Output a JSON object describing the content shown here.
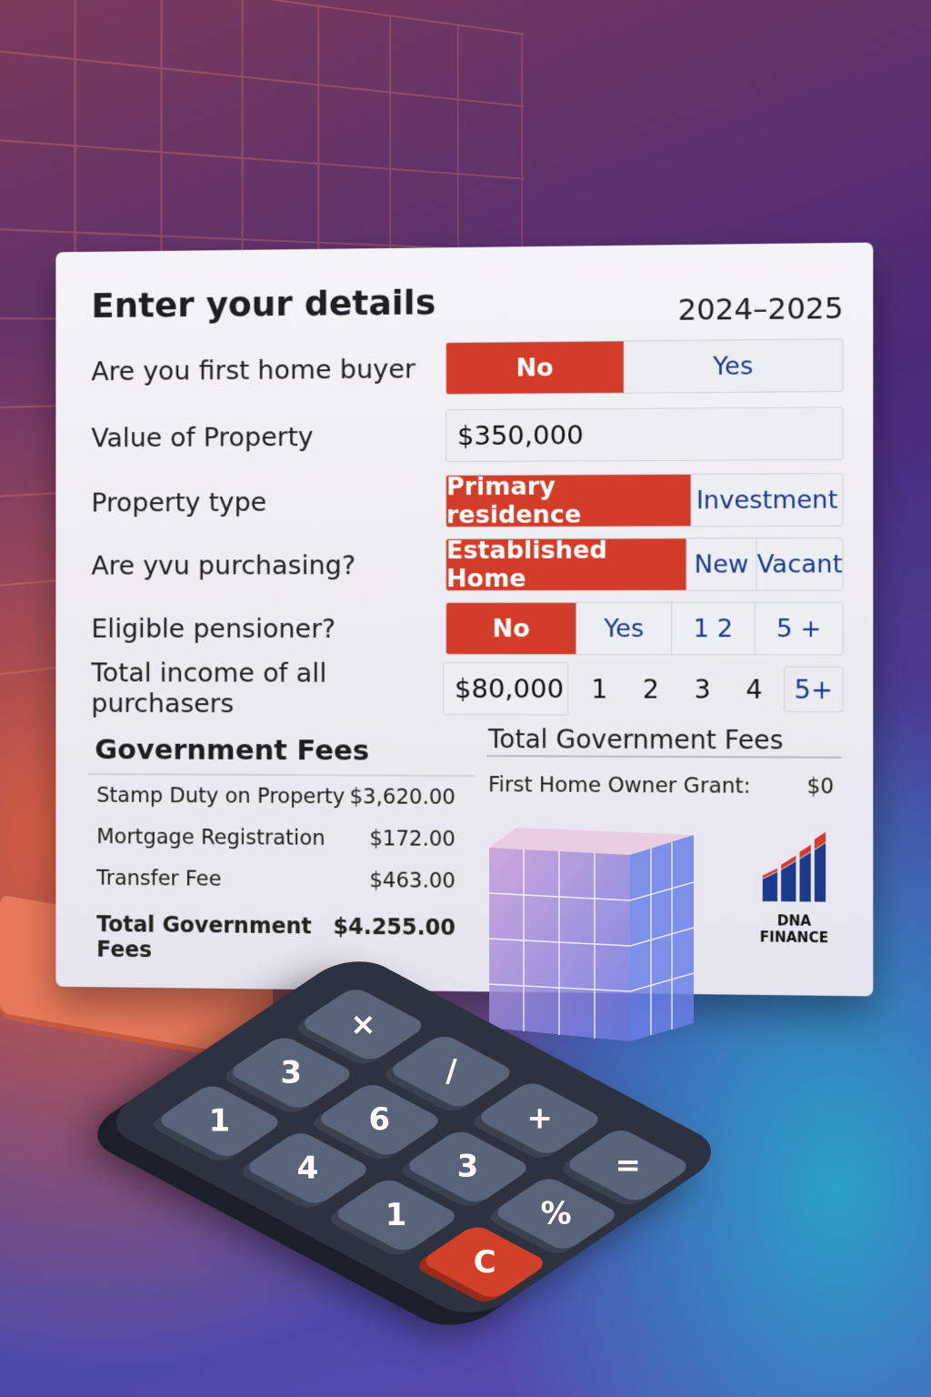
{
  "header": {
    "title": "Enter your details",
    "year": "2024–2025"
  },
  "form": {
    "first_home_buyer": {
      "label": "Are you first home buyer",
      "options": [
        "No",
        "Yes"
      ],
      "selected": "No"
    },
    "property_value": {
      "label": "Value of Property",
      "value": "$350,000"
    },
    "property_type": {
      "label": "Property type",
      "options": [
        "Primary residence",
        "Investment"
      ],
      "selected": "Primary residence"
    },
    "purchasing": {
      "label": "Are yvu purchasing?",
      "options": [
        "Established Home",
        "New",
        "Vacant"
      ],
      "selected": "Established Home"
    },
    "pensioner": {
      "label": "Eligible pensioner?",
      "options": [
        "No",
        "Yes",
        "1 2",
        "5 +"
      ],
      "selected": "No"
    },
    "income": {
      "label": "Total income of all purchasers",
      "value": "$80,000",
      "counts": [
        "1",
        "2",
        "3",
        "4",
        "5+"
      ]
    }
  },
  "government_fees": {
    "heading": "Government Fees",
    "items": [
      {
        "label": "Stamp Duty on Property",
        "value": "$3,620.00"
      },
      {
        "label": "Mortgage Registration",
        "value": "$172.00"
      },
      {
        "label": "Transfer Fee",
        "value": "$463.00"
      }
    ],
    "total": {
      "label": "Total Government Fees",
      "value": "$4.255.00"
    }
  },
  "summary": {
    "heading": "Total Government Fees",
    "grant_label": "First Home Owner Grant:",
    "grant_value": "$0"
  },
  "brand": {
    "name": "DNA FINANCE",
    "colors": {
      "red": "#d23c28",
      "blue": "#1d3a8a"
    }
  },
  "calculator": {
    "keys": [
      "×",
      "/",
      "+",
      "=",
      "3",
      "6",
      "3",
      "%",
      "1",
      "4",
      "1",
      "C"
    ]
  }
}
